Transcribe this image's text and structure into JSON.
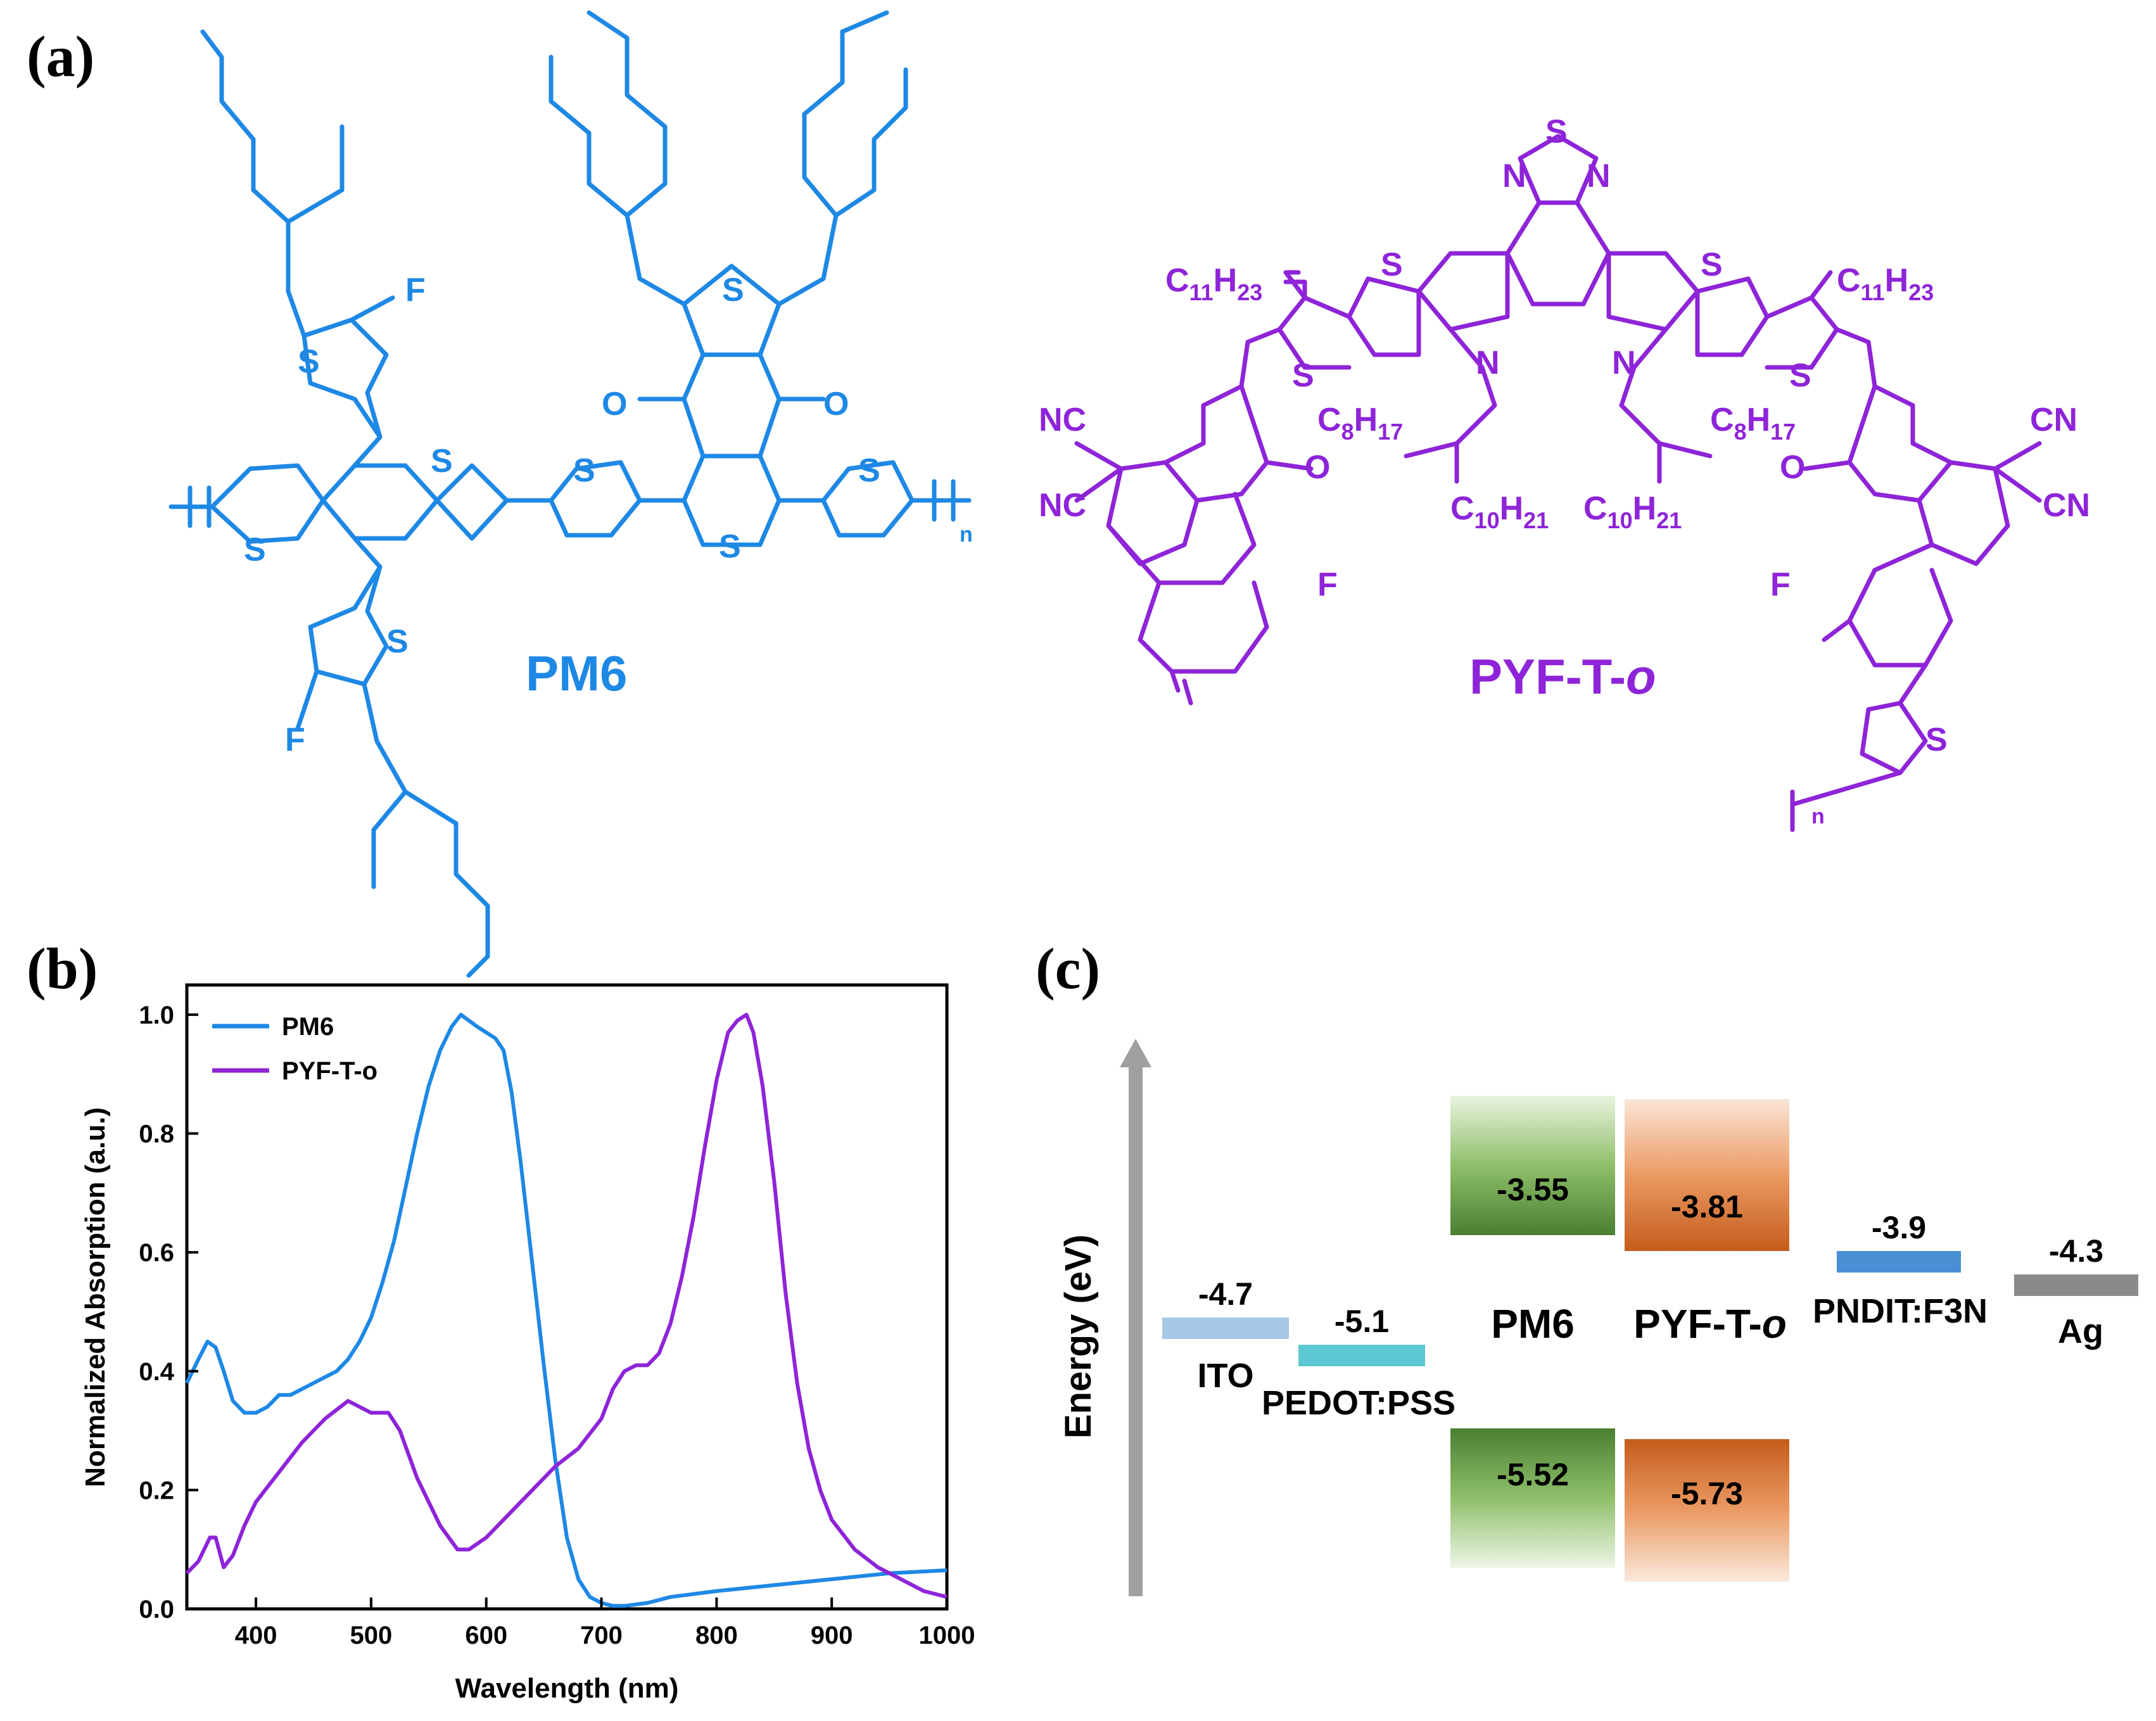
{
  "panels": {
    "a_label": "(a)",
    "b_label": "(b)",
    "c_label": "(c)"
  },
  "structures": {
    "pm6_name": "PM6",
    "pyf_name_main": "PYF-T-",
    "pyf_name_italic": "o",
    "atoms_blue": {
      "F": "F",
      "S": "S",
      "O": "O",
      "n": "n"
    },
    "atoms_purple": {
      "S": "S",
      "N": "N",
      "F": "F",
      "O": "O",
      "CN": "CN",
      "NC": "NC",
      "n": "n",
      "C11H23_C": "C",
      "C11H23_sub1": "11",
      "C11H23_H": "H",
      "C11H23_sub2": "23",
      "C8H17_C": "C",
      "C8H17_sub1": "8",
      "C8H17_H": "H",
      "C8H17_sub2": "17",
      "C10H21_C": "C",
      "C10H21_sub1": "10",
      "C10H21_H": "H",
      "C10H21_sub2": "21"
    },
    "colors": {
      "pm6": "#1e88e5",
      "pyf": "#8e24d8"
    }
  },
  "chart_data": {
    "type": "line",
    "xlabel": "Wavelength (nm)",
    "ylabel": "Normalized Absorption (a.u.)",
    "xlim": [
      340,
      1000
    ],
    "ylim": [
      0.0,
      1.05
    ],
    "xticks": [
      400,
      500,
      600,
      700,
      800,
      900,
      1000
    ],
    "yticks": [
      0.0,
      0.2,
      0.4,
      0.6,
      0.8,
      1.0
    ],
    "xtick_labels": [
      "400",
      "500",
      "600",
      "700",
      "800",
      "900",
      "1000"
    ],
    "ytick_labels": [
      "0.0",
      "0.2",
      "0.4",
      "0.6",
      "0.8",
      "1.0"
    ],
    "legend": "top-left",
    "grid": false,
    "series": [
      {
        "name": "PM6",
        "color": "#1e88e5",
        "x": [
          340,
          350,
          358,
          365,
          372,
          380,
          390,
          400,
          410,
          420,
          430,
          440,
          450,
          460,
          470,
          480,
          490,
          500,
          510,
          520,
          530,
          540,
          550,
          560,
          570,
          578,
          585,
          592,
          600,
          608,
          615,
          622,
          630,
          640,
          650,
          660,
          670,
          680,
          690,
          700,
          710,
          720,
          740,
          760,
          800,
          850,
          900,
          950,
          1000
        ],
        "y": [
          0.38,
          0.42,
          0.45,
          0.44,
          0.4,
          0.35,
          0.33,
          0.33,
          0.34,
          0.36,
          0.36,
          0.37,
          0.38,
          0.39,
          0.4,
          0.42,
          0.45,
          0.49,
          0.55,
          0.62,
          0.71,
          0.8,
          0.88,
          0.94,
          0.98,
          1.0,
          0.99,
          0.98,
          0.97,
          0.96,
          0.94,
          0.87,
          0.75,
          0.58,
          0.41,
          0.25,
          0.12,
          0.05,
          0.02,
          0.01,
          0.005,
          0.005,
          0.01,
          0.02,
          0.03,
          0.04,
          0.05,
          0.06,
          0.065
        ]
      },
      {
        "name": "PYF-T-o",
        "color": "#8e24d8",
        "x": [
          340,
          350,
          360,
          365,
          372,
          380,
          390,
          400,
          420,
          440,
          460,
          480,
          490,
          500,
          515,
          525,
          540,
          560,
          575,
          585,
          600,
          620,
          640,
          660,
          680,
          700,
          710,
          720,
          730,
          740,
          750,
          760,
          770,
          780,
          790,
          800,
          810,
          818,
          826,
          832,
          840,
          850,
          860,
          870,
          880,
          890,
          900,
          920,
          940,
          960,
          980,
          1000
        ],
        "y": [
          0.06,
          0.08,
          0.12,
          0.12,
          0.07,
          0.09,
          0.14,
          0.18,
          0.23,
          0.28,
          0.32,
          0.35,
          0.34,
          0.33,
          0.33,
          0.3,
          0.22,
          0.14,
          0.1,
          0.1,
          0.12,
          0.16,
          0.2,
          0.24,
          0.27,
          0.32,
          0.37,
          0.4,
          0.41,
          0.41,
          0.43,
          0.48,
          0.56,
          0.66,
          0.78,
          0.89,
          0.97,
          0.99,
          1.0,
          0.97,
          0.88,
          0.72,
          0.53,
          0.38,
          0.27,
          0.2,
          0.15,
          0.1,
          0.07,
          0.05,
          0.03,
          0.02
        ]
      }
    ]
  },
  "energy_diagram": {
    "axis_label": "Energy (eV)",
    "levels": [
      {
        "name": "ITO",
        "value": "-4.7",
        "color": "#a6c8e6"
      },
      {
        "name": "PEDOT:PSS",
        "value": "-5.1",
        "color": "#5bc8d2"
      },
      {
        "name": "PNDIT:F3N",
        "value": "-3.9",
        "color": "#4a8fd4"
      },
      {
        "name": "Ag",
        "value": "-4.3",
        "color": "#8a8a8a"
      }
    ],
    "pm6": {
      "name": "PM6",
      "lumo": "-3.55",
      "homo": "-5.52"
    },
    "pyf": {
      "name_main": "PYF-T-",
      "name_italic": "o",
      "lumo": "-3.81",
      "homo": "-5.73"
    }
  }
}
